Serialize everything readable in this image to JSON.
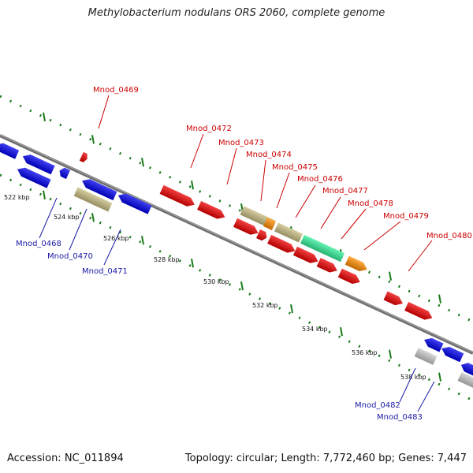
{
  "title": "Methylobacterium nodulans ORS 2060, complete genome",
  "footer": {
    "accession": "Accession: NC_011894",
    "summary": "Topology: circular; Length: 7,772,460 bp; Genes: 7,447"
  },
  "colors": {
    "forward_label": "#cc0000",
    "reverse_label": "#1a1aa6",
    "backbone": "#808080",
    "tick": "#1a7a1a"
  },
  "ruler_ticks": [
    "522 kbp",
    "524 kbp",
    "526 kbp",
    "528 kbp",
    "530 kbp",
    "532 kbp",
    "534 kbp",
    "536 kbp",
    "538 kbp"
  ],
  "forward_labels": [
    "Mnod_0469",
    "Mnod_0472",
    "Mnod_0473",
    "Mnod_0474",
    "Mnod_0475",
    "Mnod_0476",
    "Mnod_0477",
    "Mnod_0478",
    "Mnod_0479",
    "Mnod_0480"
  ],
  "reverse_labels": [
    "Mnod_0468",
    "Mnod_0470",
    "Mnod_0471",
    "Mnod_0482",
    "Mnod_0483"
  ]
}
